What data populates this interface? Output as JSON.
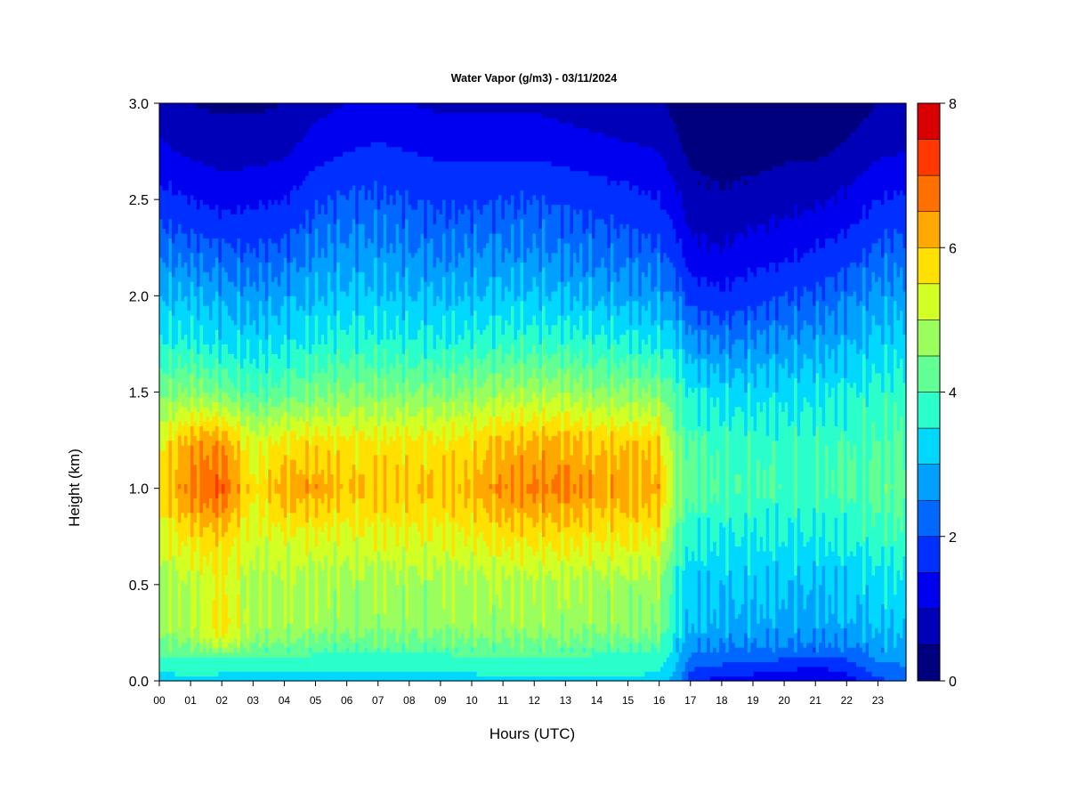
{
  "chart_data": {
    "type": "heatmap",
    "title": "Water Vapor (g/m3) - 03/11/2024",
    "xlabel": "Hours (UTC)",
    "ylabel": "Height (km)",
    "x_tick_labels": [
      "00",
      "01",
      "02",
      "03",
      "04",
      "05",
      "06",
      "07",
      "08",
      "09",
      "10",
      "11",
      "12",
      "13",
      "14",
      "15",
      "16",
      "17",
      "18",
      "19",
      "20",
      "21",
      "22",
      "23"
    ],
    "x_tick_values": [
      0,
      1,
      2,
      3,
      4,
      5,
      6,
      7,
      8,
      9,
      10,
      11,
      12,
      13,
      14,
      15,
      16,
      17,
      18,
      19,
      20,
      21,
      22,
      23
    ],
    "xlim": [
      0,
      23.9
    ],
    "y_tick_labels": [
      "0.0",
      "0.5",
      "1.0",
      "1.5",
      "2.0",
      "2.5",
      "3.0"
    ],
    "y_tick_values": [
      0.0,
      0.5,
      1.0,
      1.5,
      2.0,
      2.5,
      3.0
    ],
    "ylim": [
      0,
      3.0
    ],
    "colorbar": {
      "range": [
        0,
        8
      ],
      "tick_labels": [
        "0",
        "2",
        "4",
        "6",
        "8"
      ],
      "tick_values": [
        0,
        2,
        4,
        6,
        8
      ],
      "levels": [
        0,
        0.5,
        1,
        1.5,
        2,
        2.5,
        3,
        3.5,
        4,
        4.5,
        5,
        5.5,
        6,
        6.5,
        7,
        7.5,
        8
      ],
      "colors": [
        "#00007f",
        "#0000b8",
        "#0000f0",
        "#0030ff",
        "#0068ff",
        "#00a0ff",
        "#00d8ff",
        "#2affcc",
        "#62ff94",
        "#9aff5c",
        "#d2ff24",
        "#ffe000",
        "#ffa800",
        "#ff7000",
        "#ff3800",
        "#d80000",
        "#8c0000"
      ]
    },
    "profile_keys": {
      "heights_km": [
        0.0,
        0.1,
        0.2,
        0.3,
        0.5,
        0.75,
        1.0,
        1.25,
        1.5,
        1.75,
        2.0,
        2.25,
        2.5,
        2.75,
        3.0
      ],
      "columns": [
        {
          "hour": 0.0,
          "values": [
            3.2,
            3.8,
            4.4,
            4.8,
            4.8,
            5.3,
            5.7,
            5.4,
            4.4,
            3.6,
            3.0,
            2.4,
            1.7,
            1.1,
            0.8
          ]
        },
        {
          "hour": 1.0,
          "values": [
            3.4,
            3.9,
            4.6,
            5.0,
            5.0,
            5.7,
            6.7,
            6.2,
            4.6,
            3.6,
            3.0,
            2.2,
            1.5,
            0.9,
            0.5
          ]
        },
        {
          "hour": 2.0,
          "values": [
            3.3,
            3.8,
            5.3,
            5.8,
            5.4,
            5.9,
            7.0,
            6.4,
            4.4,
            3.4,
            2.8,
            2.1,
            1.3,
            0.8,
            0.4
          ]
        },
        {
          "hour": 3.0,
          "values": [
            3.3,
            3.8,
            4.5,
            4.9,
            4.9,
            5.2,
            5.6,
            5.2,
            4.0,
            3.3,
            2.7,
            2.0,
            1.4,
            0.8,
            0.4
          ]
        },
        {
          "hour": 4.0,
          "values": [
            3.3,
            3.8,
            4.5,
            4.9,
            4.9,
            5.4,
            6.3,
            5.6,
            4.2,
            3.4,
            2.8,
            2.1,
            1.5,
            0.9,
            0.5
          ]
        },
        {
          "hour": 5.0,
          "values": [
            3.3,
            3.8,
            4.3,
            4.8,
            4.8,
            5.4,
            6.3,
            5.7,
            4.4,
            3.6,
            3.0,
            2.5,
            1.9,
            1.3,
            0.8
          ]
        },
        {
          "hour": 6.0,
          "values": [
            3.2,
            3.7,
            4.3,
            4.7,
            4.8,
            5.3,
            6.0,
            5.6,
            4.5,
            3.7,
            3.1,
            2.6,
            2.1,
            1.5,
            1.0
          ]
        },
        {
          "hour": 7.0,
          "values": [
            3.3,
            3.8,
            4.3,
            4.7,
            4.8,
            5.4,
            6.0,
            5.6,
            4.5,
            3.7,
            3.1,
            2.6,
            2.1,
            1.6,
            1.1
          ]
        },
        {
          "hour": 8.0,
          "values": [
            3.3,
            3.8,
            4.3,
            4.7,
            4.8,
            5.4,
            6.0,
            5.6,
            4.5,
            3.6,
            3.0,
            2.5,
            2.0,
            1.5,
            1.0
          ]
        },
        {
          "hour": 9.0,
          "values": [
            3.3,
            3.8,
            4.3,
            4.7,
            4.8,
            5.4,
            6.0,
            5.6,
            4.5,
            3.6,
            3.0,
            2.4,
            1.9,
            1.4,
            0.9
          ]
        },
        {
          "hour": 10.0,
          "values": [
            3.3,
            3.8,
            4.4,
            4.8,
            4.8,
            5.5,
            6.1,
            5.7,
            4.6,
            3.7,
            3.0,
            2.5,
            1.9,
            1.4,
            0.9
          ]
        },
        {
          "hour": 11.0,
          "values": [
            3.4,
            3.9,
            4.4,
            4.8,
            4.9,
            5.7,
            6.5,
            6.0,
            4.8,
            3.8,
            3.1,
            2.5,
            2.0,
            1.4,
            0.9
          ]
        },
        {
          "hour": 12.0,
          "values": [
            3.4,
            3.9,
            4.4,
            4.8,
            4.9,
            5.7,
            6.6,
            6.1,
            4.8,
            3.8,
            3.1,
            2.5,
            2.0,
            1.4,
            0.9
          ]
        },
        {
          "hour": 13.0,
          "values": [
            3.4,
            3.9,
            4.4,
            4.8,
            4.9,
            5.7,
            6.6,
            6.1,
            4.8,
            3.8,
            3.0,
            2.4,
            1.9,
            1.3,
            0.8
          ]
        },
        {
          "hour": 14.0,
          "values": [
            3.4,
            3.8,
            4.3,
            4.7,
            4.8,
            5.6,
            6.3,
            5.9,
            4.6,
            3.7,
            2.9,
            2.3,
            1.8,
            1.2,
            0.7
          ]
        },
        {
          "hour": 15.0,
          "values": [
            3.4,
            3.8,
            4.3,
            4.7,
            4.8,
            5.6,
            6.3,
            5.9,
            4.6,
            3.6,
            2.8,
            2.2,
            1.7,
            1.1,
            0.6
          ]
        },
        {
          "hour": 16.0,
          "values": [
            3.3,
            3.7,
            4.2,
            4.6,
            4.7,
            5.5,
            6.2,
            5.8,
            4.5,
            3.5,
            2.7,
            2.1,
            1.5,
            1.0,
            0.6
          ]
        },
        {
          "hour": 16.6,
          "values": [
            2.7,
            3.0,
            3.2,
            3.4,
            3.5,
            4.1,
            4.5,
            4.3,
            3.9,
            3.2,
            2.3,
            1.6,
            1.1,
            0.6,
            0.3
          ]
        },
        {
          "hour": 17.0,
          "values": [
            1.6,
            2.3,
            2.8,
            3.0,
            3.2,
            3.6,
            4.2,
            4.0,
            3.5,
            2.7,
            1.8,
            1.1,
            0.7,
            0.4,
            0.2
          ]
        },
        {
          "hour": 18.0,
          "values": [
            1.3,
            2.1,
            2.6,
            2.9,
            3.1,
            3.5,
            4.0,
            3.8,
            3.3,
            2.5,
            1.6,
            1.0,
            0.6,
            0.3,
            0.1
          ]
        },
        {
          "hour": 19.0,
          "values": [
            1.2,
            2.0,
            2.6,
            2.9,
            3.1,
            3.5,
            4.0,
            3.8,
            3.3,
            2.6,
            1.8,
            1.2,
            0.7,
            0.3,
            0.1
          ]
        },
        {
          "hour": 20.0,
          "values": [
            1.0,
            1.9,
            2.6,
            2.8,
            3.1,
            3.5,
            3.9,
            3.8,
            3.3,
            2.7,
            2.0,
            1.3,
            0.8,
            0.4,
            0.1
          ]
        },
        {
          "hour": 21.0,
          "values": [
            0.9,
            1.7,
            2.5,
            2.8,
            3.0,
            3.5,
            3.9,
            3.8,
            3.4,
            2.8,
            2.1,
            1.5,
            0.9,
            0.4,
            0.1
          ]
        },
        {
          "hour": 22.0,
          "values": [
            1.2,
            1.9,
            2.6,
            2.9,
            3.1,
            3.6,
            4.0,
            3.9,
            3.5,
            2.9,
            2.4,
            1.7,
            1.1,
            0.6,
            0.2
          ]
        },
        {
          "hour": 23.0,
          "values": [
            1.9,
            2.5,
            2.8,
            3.1,
            3.3,
            3.8,
            4.2,
            4.0,
            3.7,
            3.2,
            2.7,
            2.1,
            1.5,
            0.9,
            0.5
          ]
        },
        {
          "hour": 23.9,
          "values": [
            2.0,
            2.6,
            2.9,
            3.2,
            3.4,
            3.9,
            4.3,
            4.1,
            3.8,
            3.3,
            2.8,
            2.2,
            1.6,
            1.0,
            0.5
          ]
        }
      ]
    }
  }
}
